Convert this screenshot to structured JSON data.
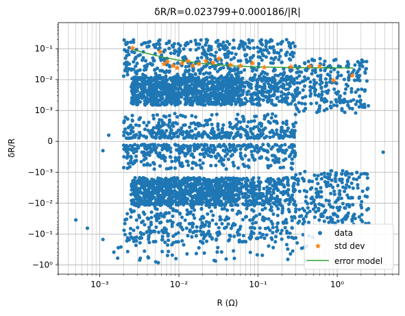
{
  "chart_data": {
    "type": "scatter",
    "title": "δR/R=0.023799+0.000186/|R|",
    "xlabel": "R (Ω)",
    "ylabel": "δR/R",
    "x_scale": "log",
    "y_scale": "symlog",
    "y_linthresh": 0.001,
    "xlim": [
      0.0003,
      6
    ],
    "ylim": [
      -2.0,
      0.7
    ],
    "grid": true,
    "legend_position": "lower-right",
    "x_ticks": [
      {
        "value": 0.001,
        "label": "10⁻³"
      },
      {
        "value": 0.01,
        "label": "10⁻²"
      },
      {
        "value": 0.1,
        "label": "10⁻¹"
      },
      {
        "value": 1,
        "label": "10⁰"
      }
    ],
    "y_ticks": [
      {
        "value": 0.1,
        "label": "10⁻¹"
      },
      {
        "value": 0.01,
        "label": "10⁻²"
      },
      {
        "value": 0.001,
        "label": "10⁻³"
      },
      {
        "value": 0,
        "label": "0"
      },
      {
        "value": -0.001,
        "label": "−10⁻³"
      },
      {
        "value": -0.01,
        "label": "−10⁻²"
      },
      {
        "value": -0.1,
        "label": "−10⁻¹"
      },
      {
        "value": -1,
        "label": "−10⁰"
      }
    ],
    "series": [
      {
        "name": "data",
        "marker": "circle",
        "color": "#1f77b4",
        "point_clusters": [
          {
            "x_range": [
              0.0025,
              0.06
            ],
            "y_range": [
              0.0015,
              0.012
            ],
            "count": 900
          },
          {
            "x_range": [
              0.0025,
              0.06
            ],
            "y_range": [
              -0.012,
              -0.0015
            ],
            "count": 900
          },
          {
            "x_range": [
              0.002,
              0.3
            ],
            "y_range": [
              0.0001,
              0.0009
            ],
            "count": 380
          },
          {
            "x_range": [
              0.002,
              0.3
            ],
            "y_range": [
              -0.0009,
              -0.0001
            ],
            "count": 380
          },
          {
            "x_range": [
              0.002,
              0.3
            ],
            "y_range": [
              0.012,
              0.2
            ],
            "count": 420
          },
          {
            "x_range": [
              0.002,
              0.3
            ],
            "y_range": [
              -0.2,
              -0.012
            ],
            "count": 320
          },
          {
            "x_range": [
              0.06,
              0.3
            ],
            "y_range": [
              0.0015,
              0.012
            ],
            "count": 220
          },
          {
            "x_range": [
              0.06,
              0.3
            ],
            "y_range": [
              -0.012,
              -0.0015
            ],
            "count": 220
          },
          {
            "x_range": [
              0.3,
              2.5
            ],
            "y_range": [
              0.0009,
              0.05
            ],
            "count": 220
          },
          {
            "x_range": [
              0.3,
              2.5
            ],
            "y_range": [
              -0.05,
              -0.0009
            ],
            "count": 220
          },
          {
            "x_range": [
              0.0015,
              0.5
            ],
            "y_range": [
              -0.8,
              -0.1
            ],
            "count": 70
          }
        ],
        "points": [
          {
            "x": 0.0005,
            "y": -0.035
          },
          {
            "x": 0.0007,
            "y": -0.065
          },
          {
            "x": 0.0011,
            "y": -0.15
          },
          {
            "x": 0.0011,
            "y": -0.0003
          },
          {
            "x": 0.0013,
            "y": 0.0002
          },
          {
            "x": 0.0055,
            "y": -0.85
          },
          {
            "x": 0.0032,
            "y": -0.7
          },
          {
            "x": 3.8,
            "y": -0.00035
          },
          {
            "x": 2.5,
            "y": -0.045
          }
        ]
      },
      {
        "name": "std dev",
        "marker": "star",
        "color": "#ff7f0e",
        "x": [
          0.0026,
          0.0058,
          0.0065,
          0.0072,
          0.0085,
          0.0095,
          0.011,
          0.013,
          0.015,
          0.018,
          0.022,
          0.027,
          0.032,
          0.045,
          0.06,
          0.085,
          0.12,
          0.26,
          0.45,
          0.6,
          0.9,
          1.55
        ],
        "y": [
          0.105,
          0.08,
          0.032,
          0.038,
          0.028,
          0.024,
          0.034,
          0.04,
          0.028,
          0.032,
          0.04,
          0.035,
          0.048,
          0.03,
          0.028,
          0.034,
          0.025,
          0.026,
          0.027,
          0.027,
          0.0095,
          0.0135
        ]
      },
      {
        "name": "error model",
        "marker": "line",
        "color": "#2ca02c",
        "x": [
          0.0026,
          0.004,
          0.006,
          0.01,
          0.02,
          0.05,
          0.1,
          0.3,
          1.0,
          1.6
        ],
        "y": [
          0.0954,
          0.0703,
          0.0548,
          0.0424,
          0.0331,
          0.0275,
          0.0257,
          0.0244,
          0.024,
          0.0239
        ]
      }
    ]
  }
}
